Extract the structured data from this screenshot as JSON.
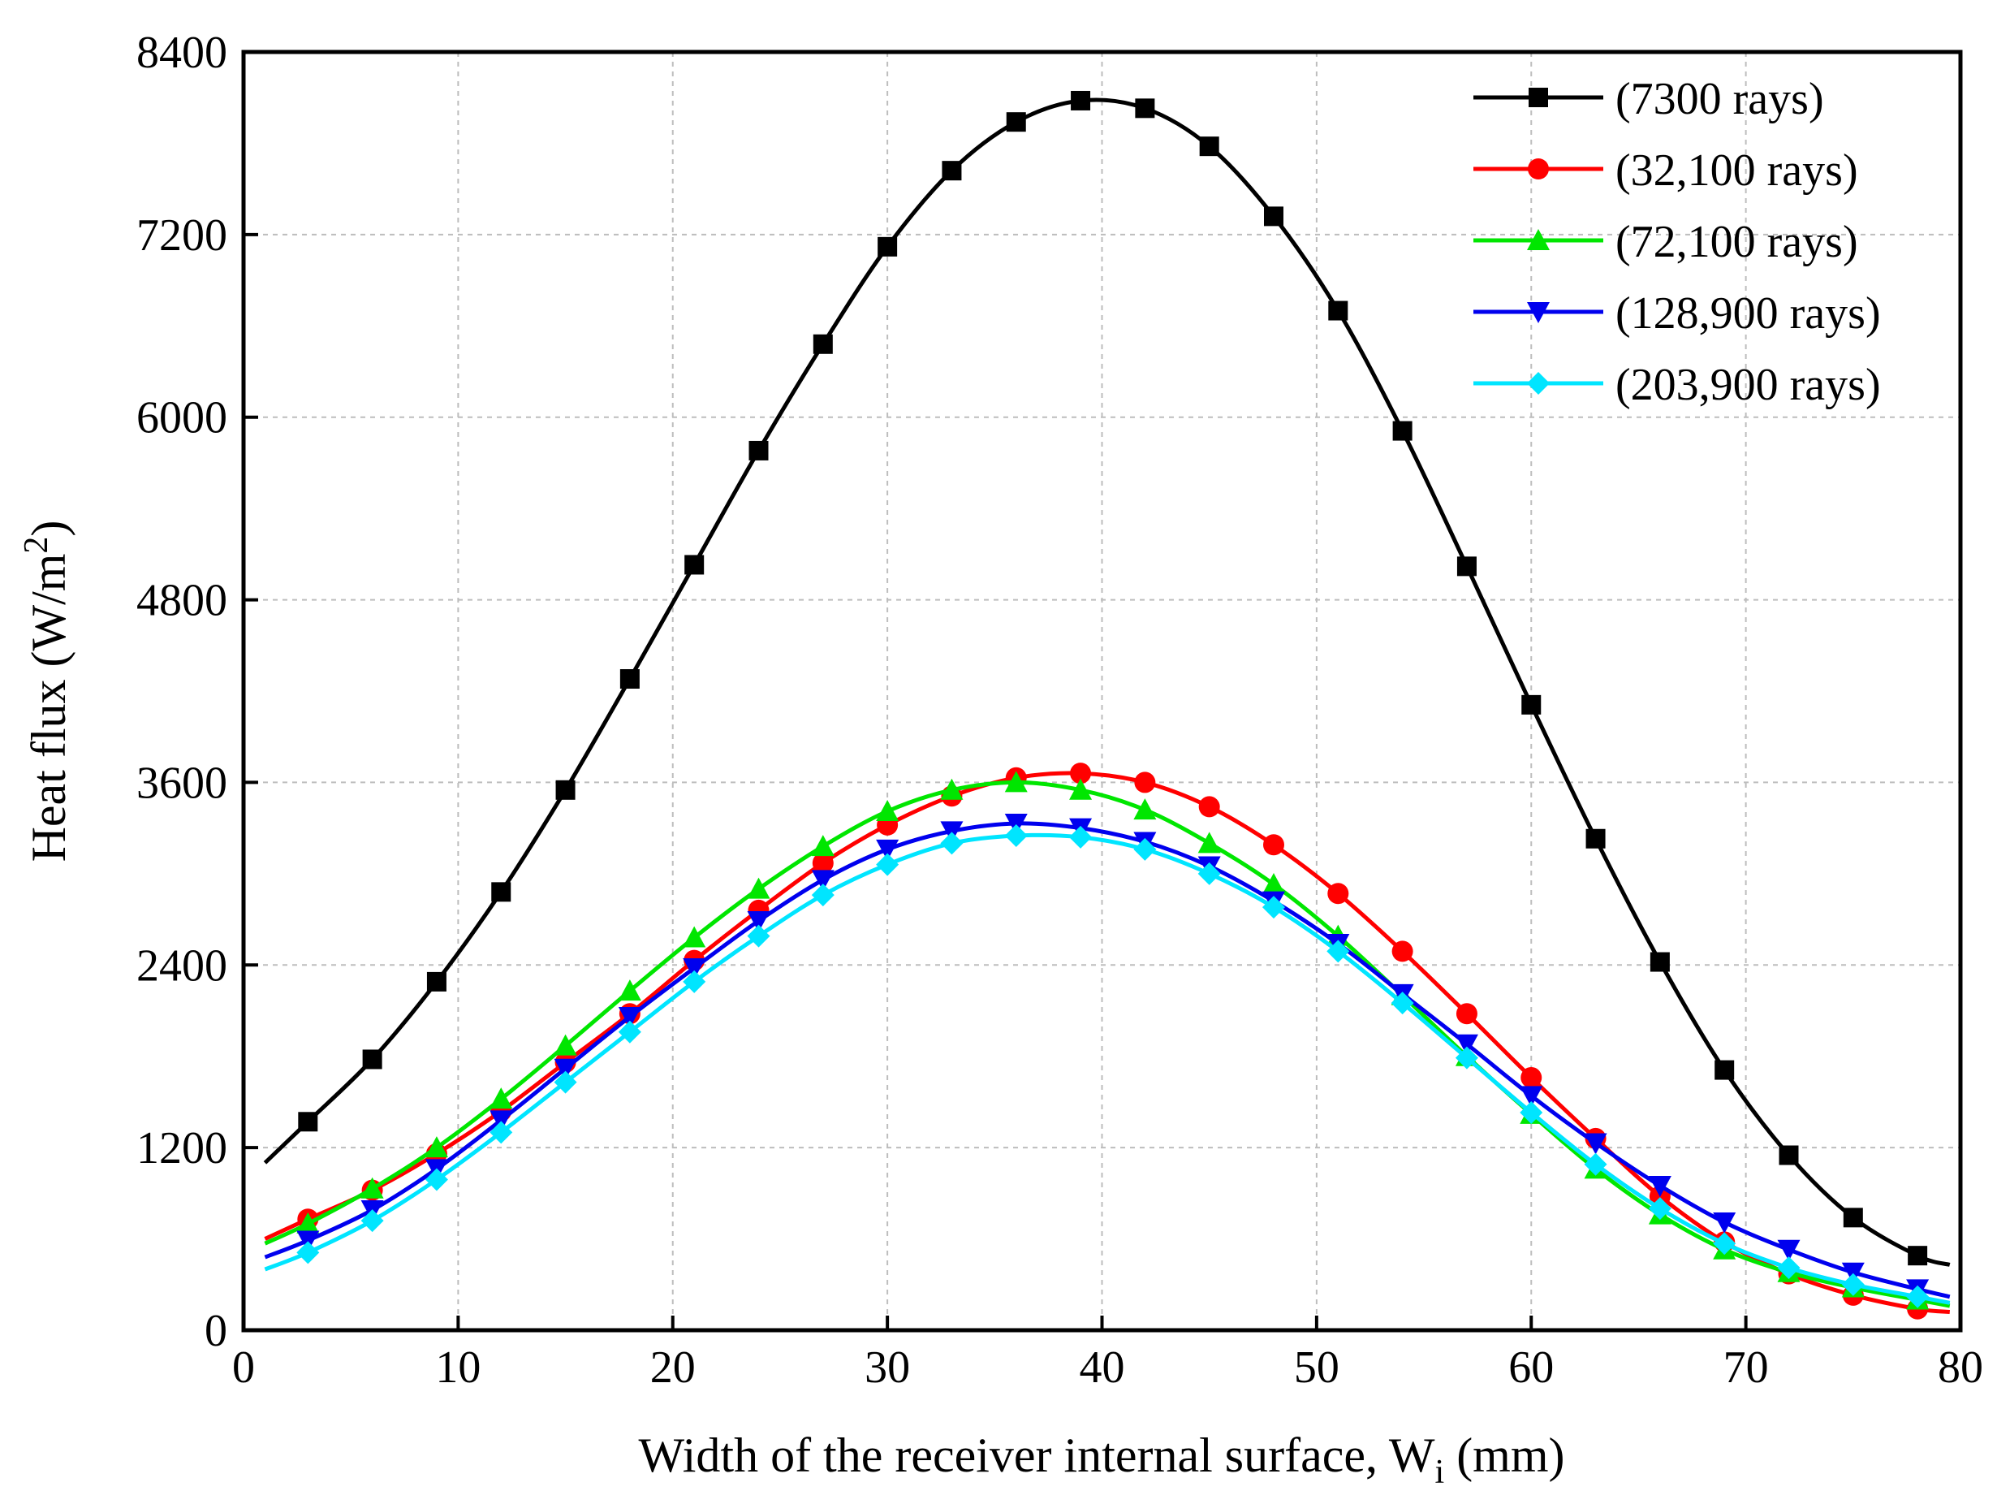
{
  "chart_data": {
    "type": "line",
    "xlabel_main": "Width of the receiver internal surface, W",
    "xlabel_sub": "i",
    "xlabel_unit": " (mm)",
    "ylabel_main": "Heat flux (W/m",
    "ylabel_sup": "2",
    "ylabel_end": ")",
    "xlim": [
      0,
      80
    ],
    "ylim": [
      0,
      8400
    ],
    "x_ticks": [
      0,
      10,
      20,
      30,
      40,
      50,
      60,
      70,
      80
    ],
    "y_ticks": [
      0,
      1200,
      2400,
      3600,
      4800,
      6000,
      7200,
      8400
    ],
    "grid": true,
    "legend_position": "top-right",
    "x": [
      3,
      6,
      9,
      12,
      15,
      18,
      21,
      24,
      27,
      30,
      33,
      36,
      39,
      42,
      45,
      48,
      51,
      54,
      57,
      60,
      63,
      66,
      69,
      72,
      75,
      78
    ],
    "series": [
      {
        "name": "(7300 rays)",
        "color": "#000000",
        "marker": "square",
        "start": [
          1,
          1100
        ],
        "end": [
          79.5,
          430
        ],
        "values": [
          1370,
          1780,
          2290,
          2880,
          3550,
          4280,
          5030,
          5780,
          6480,
          7120,
          7620,
          7940,
          8080,
          8030,
          7780,
          7320,
          6700,
          5910,
          5020,
          4110,
          3230,
          2420,
          1710,
          1150,
          740,
          490
        ]
      },
      {
        "name": "(32,100 rays)",
        "color": "#ff0000",
        "marker": "circle",
        "start": [
          1,
          600
        ],
        "end": [
          79.5,
          120
        ],
        "values": [
          730,
          920,
          1160,
          1440,
          1760,
          2080,
          2430,
          2760,
          3070,
          3320,
          3510,
          3630,
          3660,
          3600,
          3440,
          3190,
          2870,
          2490,
          2080,
          1660,
          1260,
          880,
          580,
          370,
          230,
          140
        ]
      },
      {
        "name": "(72,100 rays)",
        "color": "#00e600",
        "marker": "triangle-up",
        "start": [
          1,
          570
        ],
        "end": [
          79.5,
          160
        ],
        "values": [
          700,
          930,
          1200,
          1520,
          1870,
          2230,
          2580,
          2900,
          3180,
          3410,
          3550,
          3600,
          3550,
          3420,
          3200,
          2930,
          2590,
          2200,
          1800,
          1420,
          1060,
          760,
          530,
          380,
          280,
          200
        ]
      },
      {
        "name": "(128,900 rays)",
        "color": "#0000ee",
        "marker": "triangle-down",
        "start": [
          1,
          480
        ],
        "end": [
          79.5,
          220
        ],
        "values": [
          590,
          790,
          1060,
          1380,
          1720,
          2060,
          2380,
          2690,
          2960,
          3160,
          3280,
          3330,
          3300,
          3210,
          3050,
          2820,
          2540,
          2210,
          1880,
          1540,
          1230,
          950,
          710,
          530,
          380,
          270
        ]
      },
      {
        "name": "(203,900 rays)",
        "color": "#00e5ff",
        "marker": "diamond",
        "start": [
          1,
          400
        ],
        "end": [
          79.5,
          180
        ],
        "values": [
          510,
          720,
          990,
          1300,
          1630,
          1960,
          2290,
          2590,
          2860,
          3060,
          3200,
          3250,
          3240,
          3160,
          3000,
          2780,
          2490,
          2150,
          1790,
          1430,
          1090,
          800,
          570,
          410,
          300,
          220
        ]
      }
    ]
  }
}
